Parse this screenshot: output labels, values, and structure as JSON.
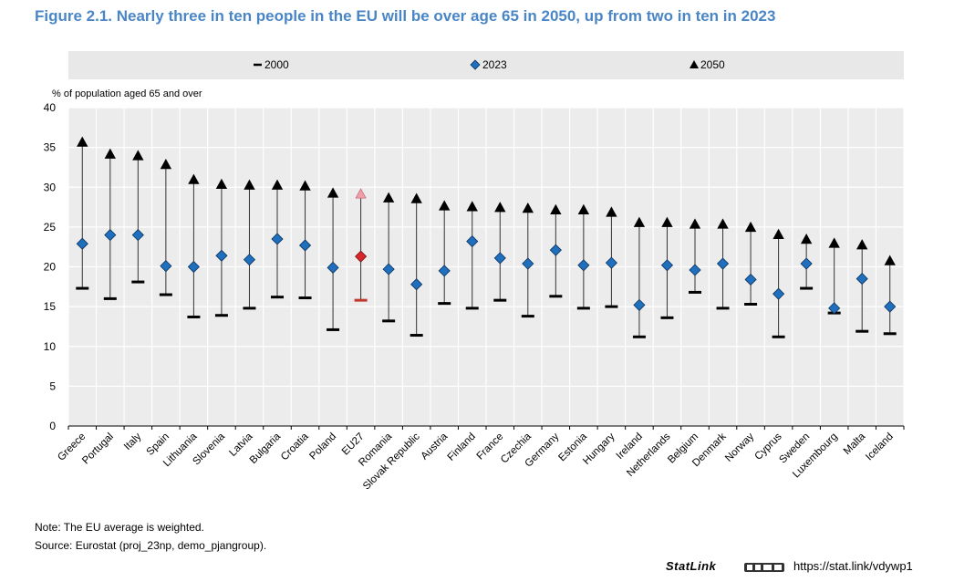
{
  "figure_title": "Figure 2.1. Nearly three in ten people in the EU will be over age 65 in 2050, up from two in ten in 2023",
  "note": "Note: The EU average is weighted.",
  "source": "Source: Eurostat (proj_23np, demo_pjangroup).",
  "statlink": {
    "label": "StatLink",
    "url": "https://stat.link/vdywp1"
  },
  "colors": {
    "title": "#4a86c5",
    "marker_2023": "#1f6fbf",
    "highlight_2023": "#d9262c",
    "highlight_2050": "#f0a0a8",
    "highlight_2000": "#c0392b",
    "plot_bg": "#ececec",
    "legend_bg": "#e8e8e8"
  },
  "chart_data": {
    "type": "scatter",
    "ylabel": "% of population aged 65 and over",
    "ylim": [
      0,
      40
    ],
    "yticks": [
      0,
      5,
      10,
      15,
      20,
      25,
      30,
      35,
      40
    ],
    "grid": true,
    "legend_position": "top",
    "highlight_category": "EU27",
    "categories": [
      "Greece",
      "Portugal",
      "Italy",
      "Spain",
      "Lithuania",
      "Slovenia",
      "Latvia",
      "Bulgaria",
      "Croatia",
      "Poland",
      "EU27",
      "Romania",
      "Slovak Republic",
      "Austria",
      "Finland",
      "France",
      "Czechia",
      "Germany",
      "Estonia",
      "Hungary",
      "Ireland",
      "Netherlands",
      "Belgium",
      "Denmark",
      "Norway",
      "Cyprus",
      "Sweden",
      "Luxembourg",
      "Malta",
      "Iceland"
    ],
    "series": [
      {
        "name": "2000",
        "marker": "dash",
        "values": [
          17.3,
          16.0,
          18.1,
          16.5,
          13.7,
          13.9,
          14.8,
          16.2,
          16.1,
          12.1,
          15.8,
          13.2,
          11.4,
          15.4,
          14.8,
          15.8,
          13.8,
          16.3,
          14.8,
          15.0,
          11.2,
          13.6,
          16.8,
          14.8,
          15.3,
          11.2,
          17.3,
          14.2,
          11.9,
          11.6
        ]
      },
      {
        "name": "2023",
        "marker": "diamond",
        "values": [
          22.9,
          24.0,
          24.0,
          20.1,
          20.0,
          21.4,
          20.9,
          23.5,
          22.7,
          19.9,
          21.3,
          19.7,
          17.8,
          19.5,
          23.2,
          21.1,
          20.4,
          22.1,
          20.2,
          20.5,
          15.2,
          20.2,
          19.6,
          20.4,
          18.4,
          16.6,
          20.4,
          14.8,
          18.5,
          15.0
        ]
      },
      {
        "name": "2050",
        "marker": "triangle",
        "values": [
          35.6,
          34.1,
          33.9,
          32.8,
          30.9,
          30.3,
          30.2,
          30.2,
          30.1,
          29.2,
          29.1,
          28.6,
          28.5,
          27.6,
          27.5,
          27.4,
          27.3,
          27.1,
          27.1,
          26.8,
          25.5,
          25.5,
          25.3,
          25.3,
          24.9,
          24.0,
          23.4,
          22.9,
          22.7,
          20.7
        ]
      }
    ]
  }
}
